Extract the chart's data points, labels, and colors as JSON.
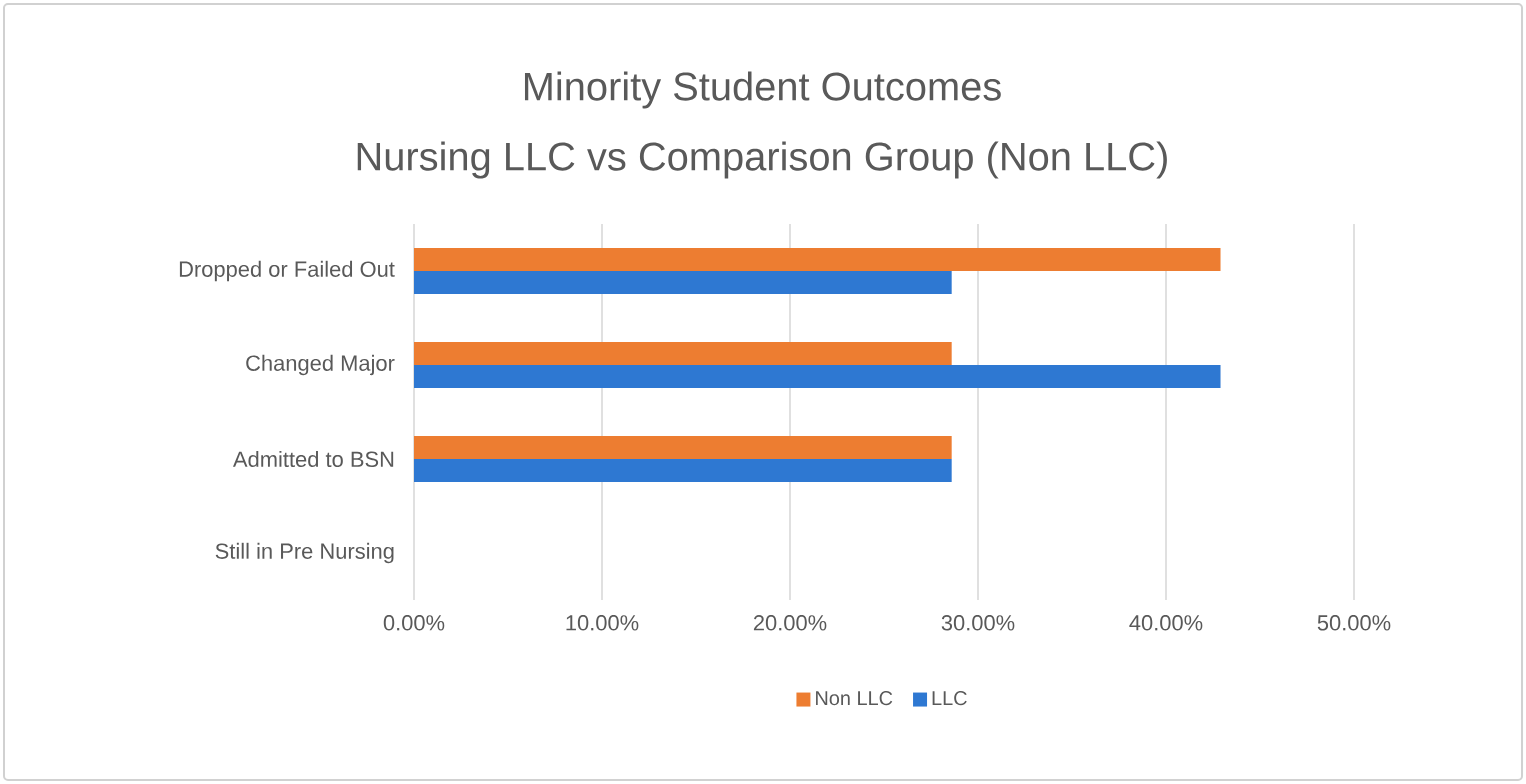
{
  "chart_data": {
    "type": "bar",
    "orientation": "horizontal",
    "title": "Minority Student Outcomes",
    "subtitle": "Nursing LLC vs Comparison Group (Non LLC)",
    "categories": [
      "Dropped or Failed Out",
      "Changed Major",
      "Admitted to BSN",
      "Still in Pre Nursing"
    ],
    "series": [
      {
        "name": "Non LLC",
        "color": "#ed7d31",
        "values": [
          42.9,
          28.6,
          28.6,
          0
        ]
      },
      {
        "name": "LLC",
        "color": "#2e78d2",
        "values": [
          28.6,
          42.9,
          28.6,
          0
        ]
      }
    ],
    "xlim": [
      0,
      50
    ],
    "xticks": [
      {
        "value": 0,
        "label": "0.00%"
      },
      {
        "value": 10,
        "label": "10.00%"
      },
      {
        "value": 20,
        "label": "20.00%"
      },
      {
        "value": 30,
        "label": "30.00%"
      },
      {
        "value": 40,
        "label": "40.00%"
      },
      {
        "value": 50,
        "label": "50.00%"
      }
    ],
    "grid": "x",
    "legend": "bottom"
  }
}
